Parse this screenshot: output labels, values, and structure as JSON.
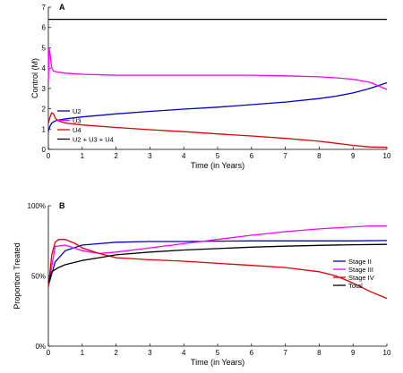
{
  "chart_data": [
    {
      "type": "line",
      "panel_label": "A",
      "xlabel": "Time (in Years)",
      "ylabel": "Control (M)",
      "xlim": [
        0,
        10
      ],
      "ylim": [
        0,
        7
      ],
      "xticks": [
        0,
        1,
        2,
        3,
        4,
        5,
        6,
        7,
        8,
        9,
        10
      ],
      "yticks": [
        0,
        1,
        2,
        3,
        4,
        5,
        6,
        7
      ],
      "ytick_labels": [
        "0",
        "1",
        "2",
        "3",
        "4",
        "5",
        "6",
        "7"
      ],
      "grid": false,
      "legend_position": "bottom-left",
      "series": [
        {
          "name": "U2",
          "color": "#0000cc",
          "x": [
            0,
            0.05,
            0.1,
            0.2,
            0.3,
            0.5,
            1,
            2,
            3,
            4,
            5,
            6,
            7,
            8,
            8.5,
            9,
            9.5,
            10
          ],
          "y": [
            0.9,
            1.15,
            1.3,
            1.4,
            1.45,
            1.5,
            1.6,
            1.75,
            1.87,
            1.98,
            2.08,
            2.2,
            2.33,
            2.5,
            2.62,
            2.78,
            3.0,
            3.28
          ]
        },
        {
          "name": "U3",
          "color": "#ff00ff",
          "x": [
            0,
            0.02,
            0.05,
            0.1,
            0.15,
            0.3,
            0.5,
            1,
            2,
            3,
            4,
            5,
            6,
            7,
            8,
            8.5,
            9,
            9.5,
            10
          ],
          "y": [
            3.3,
            5.0,
            4.7,
            4.0,
            3.85,
            3.8,
            3.75,
            3.7,
            3.65,
            3.65,
            3.65,
            3.65,
            3.65,
            3.62,
            3.57,
            3.52,
            3.45,
            3.3,
            2.95
          ]
        },
        {
          "name": "U4",
          "color": "#dd0000",
          "x": [
            0,
            0.05,
            0.1,
            0.15,
            0.2,
            0.3,
            0.5,
            1,
            2,
            3,
            4,
            5,
            6,
            7,
            8,
            8.5,
            9,
            9.5,
            10
          ],
          "y": [
            1.3,
            1.6,
            1.8,
            1.75,
            1.55,
            1.4,
            1.3,
            1.2,
            1.08,
            0.97,
            0.87,
            0.76,
            0.66,
            0.54,
            0.4,
            0.3,
            0.2,
            0.12,
            0.1
          ]
        },
        {
          "name": "U2 + U3 + U4",
          "color": "#000000",
          "x": [
            0,
            10
          ],
          "y": [
            6.4,
            6.4
          ]
        }
      ]
    },
    {
      "type": "line",
      "panel_label": "B",
      "xlabel": "Time (in Years)",
      "ylabel": "Proportion Treated",
      "xlim": [
        0,
        10
      ],
      "ylim": [
        0,
        1
      ],
      "xticks": [
        0,
        1,
        2,
        3,
        4,
        5,
        6,
        7,
        8,
        9,
        10
      ],
      "yticks": [
        0,
        0.5,
        1
      ],
      "ytick_labels": [
        "0%",
        "50%",
        "100%"
      ],
      "grid": false,
      "legend_position": "right",
      "series": [
        {
          "name": "Stage II",
          "color": "#0000cc",
          "x": [
            0,
            0.2,
            0.5,
            1,
            1.5,
            2,
            3,
            4,
            5,
            6,
            7,
            8,
            9,
            10
          ],
          "y": [
            0.43,
            0.6,
            0.68,
            0.72,
            0.73,
            0.74,
            0.745,
            0.745,
            0.748,
            0.75,
            0.75,
            0.75,
            0.75,
            0.752
          ]
        },
        {
          "name": "Stage III",
          "color": "#ff00ff",
          "x": [
            0,
            0.2,
            0.5,
            1,
            1.5,
            2,
            3,
            4,
            5,
            6,
            7,
            8,
            9,
            9.5,
            10
          ],
          "y": [
            0.43,
            0.71,
            0.72,
            0.68,
            0.66,
            0.67,
            0.7,
            0.73,
            0.76,
            0.79,
            0.815,
            0.835,
            0.85,
            0.856,
            0.856
          ]
        },
        {
          "name": "Stage IV",
          "color": "#dd0000",
          "x": [
            0,
            0.1,
            0.2,
            0.3,
            0.5,
            0.8,
            1,
            1.5,
            2,
            3,
            4,
            5,
            6,
            7,
            8,
            8.5,
            9,
            9.5,
            10
          ],
          "y": [
            0.42,
            0.65,
            0.74,
            0.76,
            0.76,
            0.73,
            0.7,
            0.66,
            0.63,
            0.615,
            0.605,
            0.59,
            0.575,
            0.56,
            0.53,
            0.5,
            0.45,
            0.39,
            0.34
          ]
        },
        {
          "name": "Total",
          "color": "#000000",
          "x": [
            0,
            0.1,
            0.3,
            0.5,
            1,
            1.5,
            2,
            3,
            4,
            5,
            6,
            7,
            8,
            9,
            10
          ],
          "y": [
            0.45,
            0.53,
            0.56,
            0.58,
            0.61,
            0.63,
            0.65,
            0.67,
            0.685,
            0.695,
            0.705,
            0.712,
            0.718,
            0.722,
            0.725
          ]
        }
      ]
    }
  ]
}
